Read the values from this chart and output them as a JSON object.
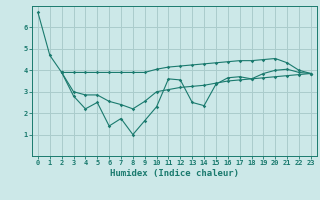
{
  "xlabel": "Humidex (Indice chaleur)",
  "background_color": "#cce8e8",
  "grid_color": "#aacccc",
  "line_color": "#1a7a6e",
  "xlim": [
    -0.5,
    23.5
  ],
  "ylim": [
    0,
    7
  ],
  "x_ticks": [
    0,
    1,
    2,
    3,
    4,
    5,
    6,
    7,
    8,
    9,
    10,
    11,
    12,
    13,
    14,
    15,
    16,
    17,
    18,
    19,
    20,
    21,
    22,
    23
  ],
  "y_ticks": [
    1,
    2,
    3,
    4,
    5,
    6
  ],
  "series1_x": [
    0,
    1,
    2
  ],
  "series1_y": [
    6.7,
    4.7,
    3.9
  ],
  "series2_x": [
    2,
    3,
    4,
    5,
    6,
    7,
    8,
    9,
    10,
    11,
    12,
    13,
    14,
    15,
    16,
    17,
    18,
    19,
    20,
    21,
    22,
    23
  ],
  "series2_y": [
    3.9,
    3.9,
    3.9,
    3.9,
    3.9,
    3.9,
    3.9,
    3.9,
    4.05,
    4.15,
    4.2,
    4.25,
    4.3,
    4.35,
    4.4,
    4.45,
    4.45,
    4.5,
    4.55,
    4.35,
    4.0,
    3.85
  ],
  "series3_x": [
    2,
    3,
    4,
    5,
    6,
    7,
    8,
    9,
    10,
    11,
    12,
    13,
    14,
    15,
    16,
    17,
    18,
    19,
    20,
    21,
    22,
    23
  ],
  "series3_y": [
    3.9,
    2.8,
    2.2,
    2.5,
    1.4,
    1.75,
    1.0,
    1.65,
    2.3,
    3.6,
    3.55,
    2.5,
    2.35,
    3.35,
    3.65,
    3.7,
    3.6,
    3.85,
    4.0,
    4.05,
    3.9,
    3.85
  ],
  "series4_x": [
    2,
    3,
    4,
    5,
    6,
    7,
    8,
    9,
    10,
    11,
    12,
    13,
    14,
    15,
    16,
    17,
    18,
    19,
    20,
    21,
    22,
    23
  ],
  "series4_y": [
    3.9,
    3.0,
    2.85,
    2.85,
    2.55,
    2.4,
    2.2,
    2.55,
    3.0,
    3.1,
    3.2,
    3.25,
    3.3,
    3.4,
    3.5,
    3.55,
    3.6,
    3.65,
    3.7,
    3.75,
    3.8,
    3.85
  ]
}
